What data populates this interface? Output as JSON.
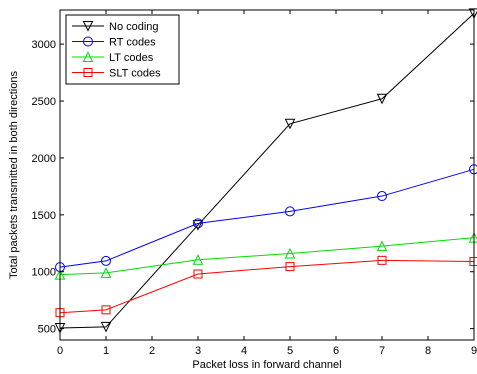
{
  "chart_data": {
    "type": "line",
    "title": "",
    "xlabel": "Packet loss in forward channel",
    "ylabel": "Total packets transmitted in both directions",
    "xlim": [
      0,
      9
    ],
    "ylim": [
      400,
      3300
    ],
    "xticks": [
      0,
      1,
      2,
      3,
      4,
      5,
      6,
      7,
      8,
      9
    ],
    "yticks": [
      500,
      1000,
      1500,
      2000,
      2500,
      3000
    ],
    "grid": false,
    "legend_position": "top-left",
    "x": [
      0,
      1,
      3,
      5,
      7,
      9
    ],
    "series": [
      {
        "name": "No coding",
        "color": "#000000",
        "marker": "triangle-down",
        "values": [
          505,
          515,
          1410,
          2300,
          2520,
          3270
        ]
      },
      {
        "name": "RT codes",
        "color": "#0000ff",
        "marker": "circle",
        "values": [
          1040,
          1095,
          1425,
          1530,
          1665,
          1900
        ]
      },
      {
        "name": "LT codes",
        "color": "#00dd00",
        "marker": "triangle-up",
        "values": [
          975,
          990,
          1105,
          1160,
          1225,
          1300
        ]
      },
      {
        "name": "SLT codes",
        "color": "#ff0000",
        "marker": "square",
        "values": [
          640,
          665,
          980,
          1045,
          1100,
          1090
        ]
      }
    ]
  }
}
